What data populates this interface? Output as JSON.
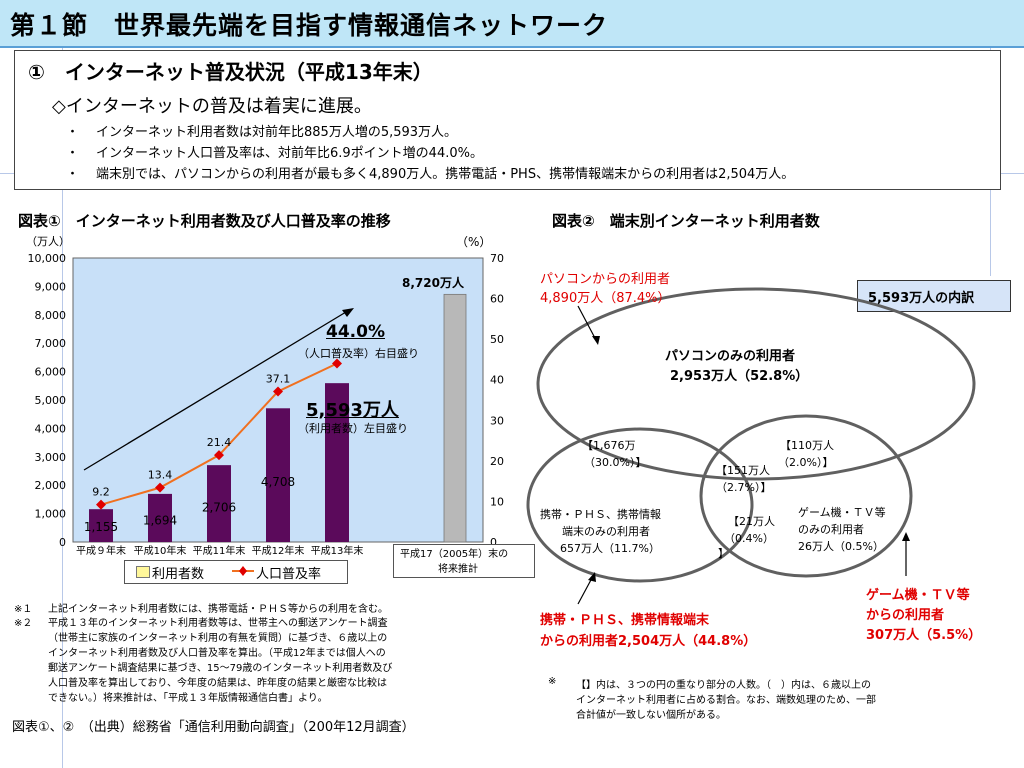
{
  "page_title": "第１節　世界最先端を目指す情報通信ネットワーク",
  "summary": {
    "heading": "①　インターネット普及状況（平成13年末）",
    "subheading": "◇インターネットの普及は着実に進展。",
    "bullets": [
      {
        "marker": "・",
        "text": "インターネット利用者数は対前年比885万人増の5,593万人。"
      },
      {
        "marker": "・",
        "text": "インターネット人口普及率は、対前年比6.9ポイント増の44.0%。"
      },
      {
        "marker": "・",
        "text": "端末別では、パソコンからの利用者が最も多く4,890万人。携帯電話・PHS、携帯情報端末からの利用者は2,504万人。"
      }
    ]
  },
  "chart1": {
    "title": "図表①　インターネット利用者数及び人口普及率の推移",
    "left_unit": "（万人）",
    "right_unit": "（%）",
    "forecast_value_label": "8,720万人",
    "callout_rate_value": "44.0%",
    "callout_rate_note": "（人口普及率）右目盛り",
    "callout_users_value": "5,593万人",
    "callout_users_note": "（利用者数）左目盛り",
    "forecast_category_line1": "平成17（2005年）末の",
    "forecast_category_line2": "将来推計",
    "legend_users": "利用者数",
    "legend_rate": "人口普及率"
  },
  "chart_data": {
    "type": "bar",
    "title": "インターネット利用者数及び人口普及率の推移",
    "categories": [
      "平成９年末",
      "平成10年末",
      "平成11年末",
      "平成12年末",
      "平成13年末"
    ],
    "series": [
      {
        "name": "利用者数",
        "axis": "left",
        "values": [
          1155,
          1694,
          2706,
          4708,
          5593
        ],
        "labels": [
          "1,155",
          "1,694",
          "2,706",
          "4,708",
          ""
        ],
        "color": "#5b0a5b"
      },
      {
        "name": "人口普及率",
        "axis": "right",
        "type": "line",
        "values": [
          9.2,
          13.4,
          21.4,
          37.1,
          44.0
        ],
        "labels": [
          "9.2",
          "13.4",
          "21.4",
          "37.1",
          ""
        ],
        "color": "#f07020"
      }
    ],
    "forecast": {
      "category": "平成17（2005年）末の将来推計",
      "value": 8720,
      "color": "#b8b8b8"
    },
    "left_axis": {
      "ylim": [
        0,
        10000
      ],
      "ticks": [
        "0",
        "1,000",
        "2,000",
        "3,000",
        "4,000",
        "5,000",
        "6,000",
        "7,000",
        "8,000",
        "9,000",
        "10,000"
      ]
    },
    "right_axis": {
      "ylim": [
        0,
        70
      ],
      "ticks": [
        "0",
        "10",
        "20",
        "30",
        "40",
        "50",
        "60",
        "70"
      ]
    },
    "xlabel": "",
    "ylabel": "（万人）",
    "legend": "bottom",
    "grid": false,
    "plot_bg": "#c8e0f8"
  },
  "chart2": {
    "title": "図表②　端末別インターネット利用者数",
    "breakdown_label": "5,593万人の内訳",
    "pc_users_line1": "パソコンからの利用者",
    "pc_users_line2": "4,890万人（87.4%）",
    "pc_only_line1": "パソコンのみの利用者",
    "pc_only_line2": "2,953万人（52.8%）",
    "pc_mobile_line1": "【1,676万",
    "pc_mobile_line2": "（30.0%）】",
    "pc_game_line1": "【110万人",
    "pc_game_line2": "（2.0%）】",
    "all_three_line1": "【151万人",
    "all_three_line2": "（2.7%）】",
    "mobile_game_line1": "【21万人",
    "mobile_game_line2": "（0.4%）",
    "mobile_game_line3": "】",
    "mobile_only_line1": "携帯・ＰＨＳ、携帯情報",
    "mobile_only_line2": "端末のみの利用者",
    "mobile_only_line3": "657万人（11.7%）",
    "game_only_line1": "ゲーム機・ＴＶ等",
    "game_only_line2": "のみの利用者",
    "game_only_line3": "26万人（0.5%）",
    "mobile_users_line1": "携帯・ＰＨＳ、携帯情報端末",
    "mobile_users_line2": "からの利用者2,504万人（44.8%）",
    "game_users_line1": "ゲーム機・ＴＶ等",
    "game_users_line2": "からの利用者",
    "game_users_line3": "307万人（5.5%）"
  },
  "notes_left": [
    {
      "mark": "※１",
      "text": "上記インターネット利用者数には、携帯電話・ＰＨＳ等からの利用を含む。"
    },
    {
      "mark": "※２",
      "text": "平成１３年のインターネット利用者数等は、世帯主への郵送アンケート調査"
    },
    {
      "mark": "",
      "text": "（世帯主に家族のインターネット利用の有無を質問）に基づき、６歳以上の"
    },
    {
      "mark": "",
      "text": "インターネット利用者数及び人口普及率を算出。（平成12年までは個人への"
    },
    {
      "mark": "",
      "text": "郵送アンケート調査結果に基づき、15～79歳のインターネット利用者数及び"
    },
    {
      "mark": "",
      "text": "人口普及率を算出しており、今年度の結果は、昨年度の結果と厳密な比較は"
    },
    {
      "mark": "",
      "text": "できない。）将来推計は、「平成１３年版情報通信白書」より。"
    }
  ],
  "notes_right": [
    {
      "mark": "※",
      "text": "【】内は、３つの円の重なり部分の人数。（　）内は、６歳以上の"
    },
    {
      "mark": "",
      "text": "インターネット利用者に占める割合。なお、端数処理のため、一部"
    },
    {
      "mark": "",
      "text": "合計値が一致しない個所がある。"
    }
  ],
  "source": "図表①、②　（出典）総務省「通信利用動向調査」（200年12月調査）"
}
